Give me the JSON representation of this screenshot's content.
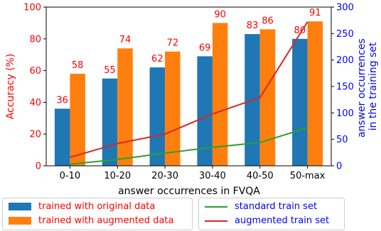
{
  "chart_data": {
    "type": "bar",
    "categories": [
      "0-10",
      "10-20",
      "20-30",
      "30-40",
      "40-50",
      "50-max"
    ],
    "xlabel": "answer occurrences in FVQA",
    "ylabel": "Accuracy (%)",
    "ylim": [
      0,
      100
    ],
    "yticks": [
      0,
      20,
      40,
      60,
      80,
      100
    ],
    "y2label_lines": [
      "answer occurrences",
      "in the training set"
    ],
    "y2lim": [
      0,
      300
    ],
    "y2ticks": [
      0,
      50,
      100,
      150,
      200,
      250,
      300
    ],
    "grid": false,
    "series": [
      {
        "name": "trained with original data",
        "kind": "bar",
        "axis": "left",
        "color": "#1f77b4",
        "values": [
          36,
          55,
          62,
          69,
          83,
          80
        ]
      },
      {
        "name": "trained with augmented data",
        "kind": "bar",
        "axis": "left",
        "color": "#ff7f0e",
        "values": [
          58,
          74,
          72,
          90,
          86,
          91
        ]
      },
      {
        "name": "standard train set",
        "kind": "line",
        "axis": "right",
        "color": "#2ca02c",
        "values": [
          3,
          12,
          24,
          35,
          44,
          72
        ]
      },
      {
        "name": "augmented train set",
        "kind": "line",
        "axis": "right",
        "color": "#d62728",
        "values": [
          16,
          42,
          60,
          98,
          129,
          272
        ]
      }
    ],
    "left_axis_color": "#ff0000",
    "right_axis_color": "#0000ff",
    "legend_placement": "bottom"
  }
}
